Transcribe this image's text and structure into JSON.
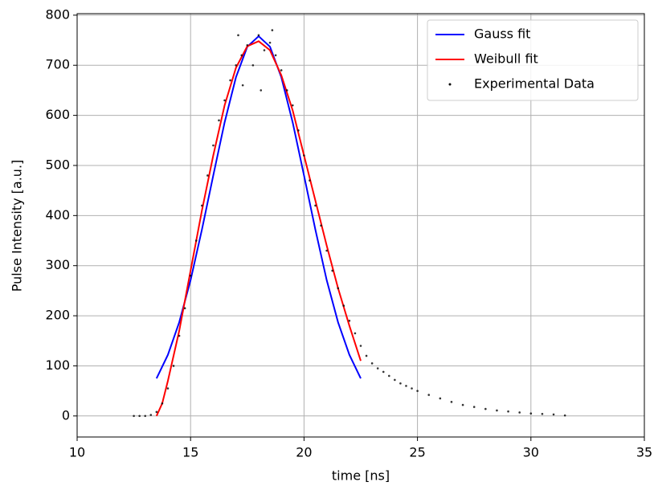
{
  "chart_data": {
    "type": "line",
    "xlabel": "time [ns]",
    "ylabel": "Pulse Intensity [a.u.]",
    "xlim": [
      10,
      35
    ],
    "ylim": [
      -42,
      803
    ],
    "xticks": [
      10,
      15,
      20,
      25,
      30,
      35
    ],
    "yticks": [
      0,
      100,
      200,
      300,
      400,
      500,
      600,
      700,
      800
    ],
    "grid": true,
    "legend": "upper right",
    "series": [
      {
        "name": "Gauss fit",
        "type": "line",
        "color": "#0000ff",
        "x": [
          13.5,
          14,
          14.5,
          15,
          15.5,
          16,
          16.5,
          17,
          17.5,
          18,
          18.5,
          19,
          19.5,
          20,
          20.5,
          21,
          21.5,
          22,
          22.5
        ],
        "values": [
          75,
          122,
          187,
          271,
          372,
          480,
          586,
          676,
          737,
          758,
          737,
          676,
          586,
          480,
          372,
          271,
          187,
          122,
          75
        ]
      },
      {
        "name": "Weibull fit",
        "type": "line",
        "color": "#ff0000",
        "x": [
          13.5,
          13.75,
          14,
          14.5,
          15,
          15.5,
          16,
          16.5,
          17,
          17.5,
          18,
          18.5,
          19,
          19.5,
          20,
          20.5,
          21,
          21.5,
          22,
          22.5
        ],
        "values": [
          0,
          25,
          70,
          170,
          290,
          410,
          520,
          620,
          695,
          738,
          748,
          730,
          680,
          610,
          520,
          430,
          340,
          255,
          180,
          110
        ]
      },
      {
        "name": "Experimental Data",
        "type": "scatter",
        "color": "#000000",
        "x": [
          12.5,
          12.75,
          13,
          13.25,
          13.5,
          13.75,
          14,
          14.25,
          14.5,
          14.75,
          15,
          15.25,
          15.5,
          15.75,
          16,
          16.25,
          16.5,
          16.75,
          17,
          17.25,
          17.5,
          17.75,
          18,
          18.25,
          18.5,
          18.75,
          19,
          19.25,
          19.5,
          19.75,
          20,
          20.25,
          20.5,
          20.75,
          21,
          21.25,
          21.5,
          21.75,
          22,
          22.25,
          22.5,
          22.75,
          23,
          23.25,
          23.5,
          23.75,
          24,
          24.25,
          24.5,
          24.75,
          25,
          25.5,
          26,
          26.5,
          27,
          27.5,
          28,
          28.5,
          29,
          29.5,
          30,
          30.5,
          31,
          31.5,
          17.3,
          18.1,
          18.6,
          17.1
        ],
        "values": [
          0,
          0,
          0,
          2,
          8,
          25,
          55,
          100,
          160,
          215,
          280,
          350,
          420,
          480,
          540,
          590,
          630,
          670,
          700,
          720,
          740,
          700,
          760,
          730,
          745,
          720,
          690,
          650,
          620,
          570,
          520,
          470,
          420,
          380,
          330,
          290,
          255,
          220,
          190,
          165,
          140,
          120,
          105,
          95,
          88,
          80,
          72,
          65,
          60,
          55,
          50,
          42,
          35,
          28,
          22,
          18,
          14,
          11,
          9,
          7,
          5,
          4,
          3,
          1,
          660,
          650,
          770,
          760
        ]
      }
    ]
  }
}
